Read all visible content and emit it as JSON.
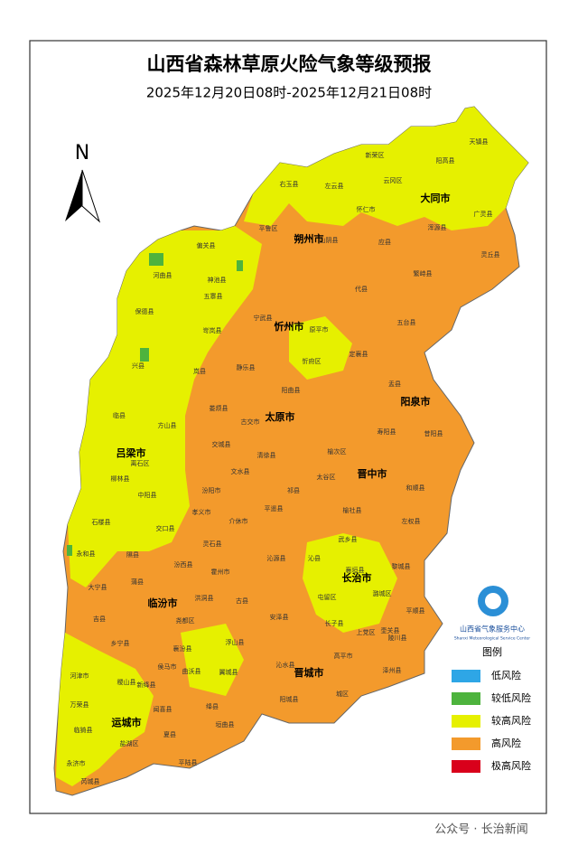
{
  "header": {
    "title": "山西省森林草原火险气象等级预报",
    "subtitle": "2025年12月20日08时-2025年12月21日08时"
  },
  "compass": {
    "label": "N"
  },
  "cities": [
    "大同市",
    "朔州市",
    "忻州市",
    "太原市",
    "阳泉市",
    "吕梁市",
    "晋中市",
    "长治市",
    "临汾市",
    "晋城市",
    "运城市"
  ],
  "counties": [
    "天镇县",
    "阳高县",
    "新荣区",
    "左云县",
    "右玉县",
    "平鲁区",
    "山阴县",
    "应县",
    "浑源县",
    "广灵县",
    "灵丘县",
    "繁峙县",
    "代县",
    "偏关县",
    "河曲县",
    "保德县",
    "五寨县",
    "岢岚县",
    "宁武县",
    "静乐县",
    "五台县",
    "定襄县",
    "兴县",
    "岚县",
    "盂县",
    "娄烦县",
    "临县",
    "方山县",
    "交城县",
    "离石区",
    "柳林县",
    "中阳县",
    "文水县",
    "寿阳县",
    "榆次区",
    "太谷区",
    "昔阳县",
    "和顺县",
    "祁县",
    "平遥县",
    "介休市",
    "孝义市",
    "汾阳市",
    "交口县",
    "石楼县",
    "左权县",
    "榆社县",
    "武乡县",
    "永和县",
    "隰县",
    "灵石县",
    "沁源县",
    "沁县",
    "襄垣县",
    "黎城县",
    "大宁县",
    "蒲县",
    "汾西县",
    "霍州市",
    "洪洞县",
    "古县",
    "安泽县",
    "屯留区",
    "潞城区",
    "平顺县",
    "吉县",
    "尧都区",
    "长子县",
    "壶关县",
    "乡宁县",
    "浮山县",
    "襄汾县",
    "上党区",
    "陵川县",
    "沁水县",
    "高平市",
    "曲沃县",
    "翼城县",
    "河津市",
    "稷山县",
    "泽州县",
    "侯马市",
    "新绛县",
    "绛县",
    "阳城县",
    "城区",
    "万荣县",
    "闻喜县",
    "垣曲县",
    "临猗县",
    "盐湖区",
    "夏县",
    "永济市",
    "平陆县",
    "芮城县",
    "怀仁市",
    "云冈区",
    "神池县",
    "原平市",
    "忻府区",
    "阳曲县",
    "古交市",
    "清徐县"
  ],
  "legend": {
    "title": "图例",
    "items": [
      {
        "label": "低风险",
        "color": "#2ea6e6"
      },
      {
        "label": "较低风险",
        "color": "#4db33d"
      },
      {
        "label": "较高风险",
        "color": "#e6f000"
      },
      {
        "label": "高风险",
        "color": "#f39a2c"
      },
      {
        "label": "极高风险",
        "color": "#d9001b"
      }
    ]
  },
  "logo": {
    "name": "山西省气象服务中心",
    "name_en": "Shanxi Meteorological Service Center"
  },
  "watermark": "公众号 · 长治新闻"
}
